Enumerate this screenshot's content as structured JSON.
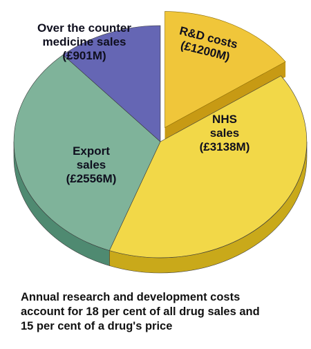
{
  "chart_data": {
    "type": "pie",
    "three_d": true,
    "slices": [
      {
        "label_lines": [
          "NHS",
          "sales",
          "(£3138M)"
        ],
        "value": 3138,
        "color": "#f2d848",
        "side_color": "#c9a91a"
      },
      {
        "label_lines": [
          "Export",
          "sales",
          "(£2556M)"
        ],
        "value": 2556,
        "color": "#7fb39a",
        "side_color": "#4f8a71"
      },
      {
        "label_lines": [
          "Over the counter",
          "medicine sales",
          "(£901M)"
        ],
        "value": 901,
        "color": "#6566b4",
        "side_color": "#474890"
      }
    ],
    "exploded_slice": {
      "label_lines": [
        "R&D costs",
        "(£1200M)"
      ],
      "value": 1200,
      "color": "#f0c63a",
      "side_color": "#c79a14"
    }
  },
  "caption_lines": [
    "Annual research and development costs",
    "account for 18 per cent of all drug sales and",
    "15 per cent of a drug's price"
  ]
}
